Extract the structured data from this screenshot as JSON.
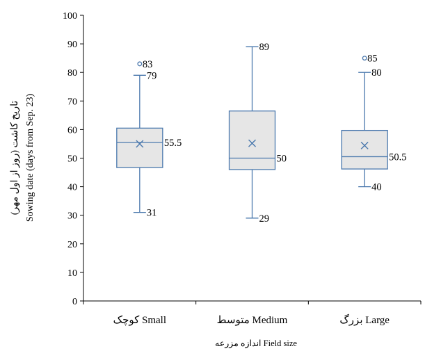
{
  "chart_data": {
    "type": "box",
    "xlabel": "اندازه مزرعه Field size",
    "ylabel_lines": [
      "تاریخ کاشت (روز از اول مهر)",
      "Sowing date (days from Sep. 23)"
    ],
    "ylim": [
      0,
      100
    ],
    "yticks": [
      0,
      10,
      20,
      30,
      40,
      50,
      60,
      70,
      80,
      90,
      100
    ],
    "grid": false,
    "categories": [
      "کوچک Small",
      "متوسط Medium",
      "بزرگ Large"
    ],
    "boxes": [
      {
        "category": "کوچک Small",
        "min": 31,
        "q1": 46.7,
        "median": 55.5,
        "q3": 60.5,
        "max": 79,
        "mean": 55,
        "outliers": [
          83
        ],
        "labels": {
          "max": "79",
          "min": "31",
          "median": "55.5",
          "outlier": "83"
        }
      },
      {
        "category": "متوسط Medium",
        "min": 29,
        "q1": 46,
        "median": 50,
        "q3": 66.5,
        "max": 89,
        "mean": 55.2,
        "outliers": [],
        "labels": {
          "max": "89",
          "min": "29",
          "median": "50"
        }
      },
      {
        "category": "بزرگ Large",
        "min": 40,
        "q1": 46.2,
        "median": 50.5,
        "q3": 59.7,
        "max": 80,
        "mean": 54.4,
        "outliers": [
          85
        ],
        "labels": {
          "max": "80",
          "min": "40",
          "median": "50.5",
          "outlier": "85"
        }
      }
    ],
    "colors": {
      "box_fill": "#e6e6e6",
      "box_stroke": "#4a78ad",
      "axis": "#000000"
    }
  }
}
